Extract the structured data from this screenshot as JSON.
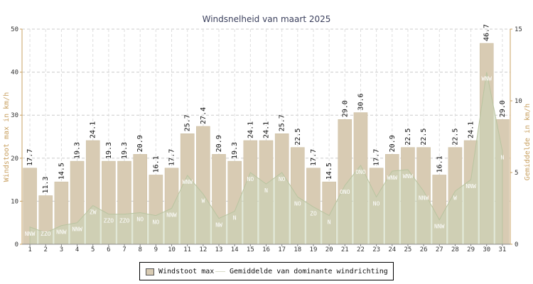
{
  "chart_data": {
    "type": "bar",
    "title": "Windsnelheid van maart 2025",
    "ylabel": "Windstoot max in km/h",
    "y2label": "Gemiddelde in km/h",
    "ylim": [
      0,
      50
    ],
    "yticks": [
      0,
      10,
      20,
      30,
      40,
      50
    ],
    "y2lim": [
      0,
      15
    ],
    "y2ticks": [
      0,
      5,
      10,
      15
    ],
    "grid": true,
    "legend_position": "bottom",
    "categories": [
      "1",
      "2",
      "3",
      "4",
      "5",
      "6",
      "7",
      "8",
      "9",
      "10",
      "11",
      "12",
      "13",
      "14",
      "15",
      "16",
      "17",
      "18",
      "19",
      "20",
      "21",
      "22",
      "23",
      "24",
      "25",
      "26",
      "27",
      "28",
      "29",
      "30",
      "31"
    ],
    "value_labels": [
      "17.7",
      "11.3",
      "14.5",
      "19.3",
      "24.1",
      "19.3",
      "19.3",
      "20.9",
      "16.1",
      "17.7",
      "25.7",
      "27.4",
      "20.9",
      "19.3",
      "24.1",
      "24.1",
      "25.7",
      "22.5",
      "17.7",
      "14.5",
      "29.0",
      "30.6",
      "17.7",
      "20.9",
      "22.5",
      "22.5",
      "16.1",
      "22.5",
      "24.1",
      "46.7",
      "29.0"
    ],
    "series": [
      {
        "name": "Windstoot max",
        "axis": "left",
        "color": "#d8cbb3",
        "values": [
          17.7,
          11.3,
          14.5,
          19.3,
          24.1,
          19.3,
          19.3,
          20.9,
          16.1,
          17.7,
          25.7,
          27.4,
          20.9,
          19.3,
          24.1,
          24.1,
          25.7,
          22.5,
          17.7,
          14.5,
          29.0,
          30.6,
          17.7,
          20.9,
          22.5,
          22.5,
          16.1,
          22.5,
          24.1,
          46.7,
          29.0
        ]
      },
      {
        "name": "Gemiddelde van dominante windrichting",
        "axis": "right",
        "color": "#c9d3b5",
        "values": [
          1.2,
          0.8,
          1.3,
          1.5,
          2.7,
          2.1,
          2.1,
          2.2,
          2.0,
          2.5,
          4.8,
          3.5,
          1.8,
          2.3,
          5.0,
          4.2,
          5.0,
          3.3,
          2.6,
          2.0,
          4.1,
          5.5,
          3.3,
          5.1,
          5.2,
          3.7,
          1.7,
          3.7,
          4.5,
          12.0,
          6.5
        ]
      }
    ],
    "directions": [
      "NNW",
      "ZZO",
      "NNW",
      "NNW",
      "ZW",
      "ZZO",
      "ZZO",
      "NO",
      "NO",
      "NNW",
      "WNW",
      "W",
      "NW",
      "N",
      "NO",
      "N",
      "NO",
      "NO",
      "ZO",
      "N",
      "ONO",
      "ONO",
      "NO",
      "WNW",
      "WNW",
      "NNW",
      "NNW",
      "W",
      "NNW",
      "WNW",
      "N"
    ]
  }
}
